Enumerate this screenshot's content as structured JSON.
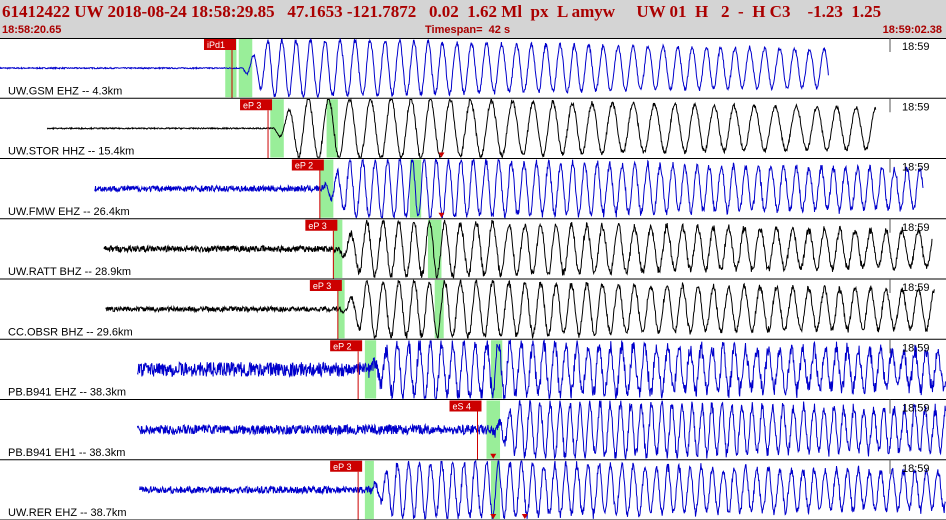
{
  "header": {
    "title": "61412422 UW 2018-08-24 18:58:29.85   47.1653 -121.7872   0.02  1.62 Ml  px  L amyw     UW 01  H   2  -  H C3    -1.23  1.25",
    "start_time": "18:58:20.65",
    "timespan": "Timespan=  42 s",
    "end_time": "18:59:02.38"
  },
  "colors": {
    "header_bg": "#d4d4d4",
    "header_text": "#aa0000",
    "blue_trace": "#0000cc",
    "black_trace": "#000000",
    "pick": "#cc0000",
    "window": "#99ee99"
  },
  "chart_data": {
    "type": "line",
    "x_unit": "s",
    "x_range": [
      0,
      42
    ],
    "traces": [
      {
        "label": "UW.GSM EHZ -- 4.3km",
        "time_tag": "18:59",
        "color": "blue",
        "start": 0.0,
        "end": 36.8,
        "onset": 10.7,
        "amp": 0.46,
        "period": 0.65,
        "noise": 0.01,
        "pick": {
          "label": "iPd1",
          "t": 10.3
        },
        "windows": [
          [
            10.0,
            10.5
          ],
          [
            10.6,
            11.2
          ]
        ],
        "marks": []
      },
      {
        "label": "UW.STOR HHZ -- 15.4km",
        "time_tag": "18:59",
        "color": "black",
        "start": 2.1,
        "end": 38.9,
        "onset": 12.1,
        "amp": 0.5,
        "period": 0.9,
        "noise": 0.01,
        "pick": {
          "label": "eP 3",
          "t": 11.9
        },
        "windows": [
          [
            12.0,
            12.6
          ],
          [
            14.5,
            15.0
          ]
        ],
        "marks": [
          19.6
        ]
      },
      {
        "label": "UW.FMW EHZ -- 26.4km",
        "time_tag": "18:59",
        "color": "blue",
        "start": 4.2,
        "end": 41.0,
        "onset": 14.3,
        "amp": 0.48,
        "period": 0.55,
        "noise": 0.05,
        "pick": {
          "label": "eP 2",
          "t": 14.2
        },
        "windows": [
          [
            14.2,
            14.8
          ],
          [
            18.2,
            18.7
          ]
        ],
        "marks": [
          19.6
        ]
      },
      {
        "label": "UW.RATT BHZ -- 28.9km",
        "time_tag": "18:59",
        "color": "black",
        "start": 4.6,
        "end": 41.4,
        "onset": 14.9,
        "amp": 0.44,
        "period": 0.7,
        "noise": 0.05,
        "pick": {
          "label": "eP 3",
          "t": 14.8
        },
        "windows": [
          [
            14.8,
            15.2
          ],
          [
            19.0,
            19.6
          ]
        ],
        "marks": []
      },
      {
        "label": "CC.OBSR BHZ -- 29.6km",
        "time_tag": "18:59",
        "color": "black",
        "start": 4.7,
        "end": 41.5,
        "onset": 15.1,
        "amp": 0.46,
        "period": 0.7,
        "noise": 0.04,
        "pick": {
          "label": "eP 3",
          "t": 15.0
        },
        "windows": [
          [
            15.0,
            15.3
          ],
          [
            19.3,
            19.7
          ]
        ],
        "marks": []
      },
      {
        "label": "PB.B941 EHZ -- 38.3km",
        "time_tag": "18:59",
        "color": "blue",
        "start": 6.1,
        "end": 42.0,
        "onset": 16.3,
        "amp": 0.44,
        "period": 0.5,
        "noise": 0.12,
        "pick": {
          "label": "eP 2",
          "t": 15.9
        },
        "windows": [
          [
            16.2,
            16.7
          ],
          [
            21.8,
            22.3
          ]
        ],
        "marks": []
      },
      {
        "label": "PB.B941 EH1 -- 38.3km",
        "time_tag": "18:59",
        "color": "blue",
        "start": 6.1,
        "end": 42.0,
        "onset": 21.8,
        "amp": 0.44,
        "period": 0.45,
        "noise": 0.08,
        "pick": {
          "label": "eS 4",
          "t": 21.2
        },
        "windows": [
          [
            21.6,
            22.2
          ]
        ],
        "marks": [
          21.9
        ]
      },
      {
        "label": "UW.RER EHZ -- 38.7km",
        "time_tag": "18:59",
        "color": "blue",
        "start": 6.2,
        "end": 42.0,
        "onset": 16.4,
        "amp": 0.45,
        "period": 0.5,
        "noise": 0.06,
        "pick": {
          "label": "eP 3",
          "t": 15.9
        },
        "windows": [
          [
            16.2,
            16.6
          ],
          [
            21.8,
            22.2
          ]
        ],
        "marks": [
          21.9,
          23.3
        ]
      }
    ]
  }
}
